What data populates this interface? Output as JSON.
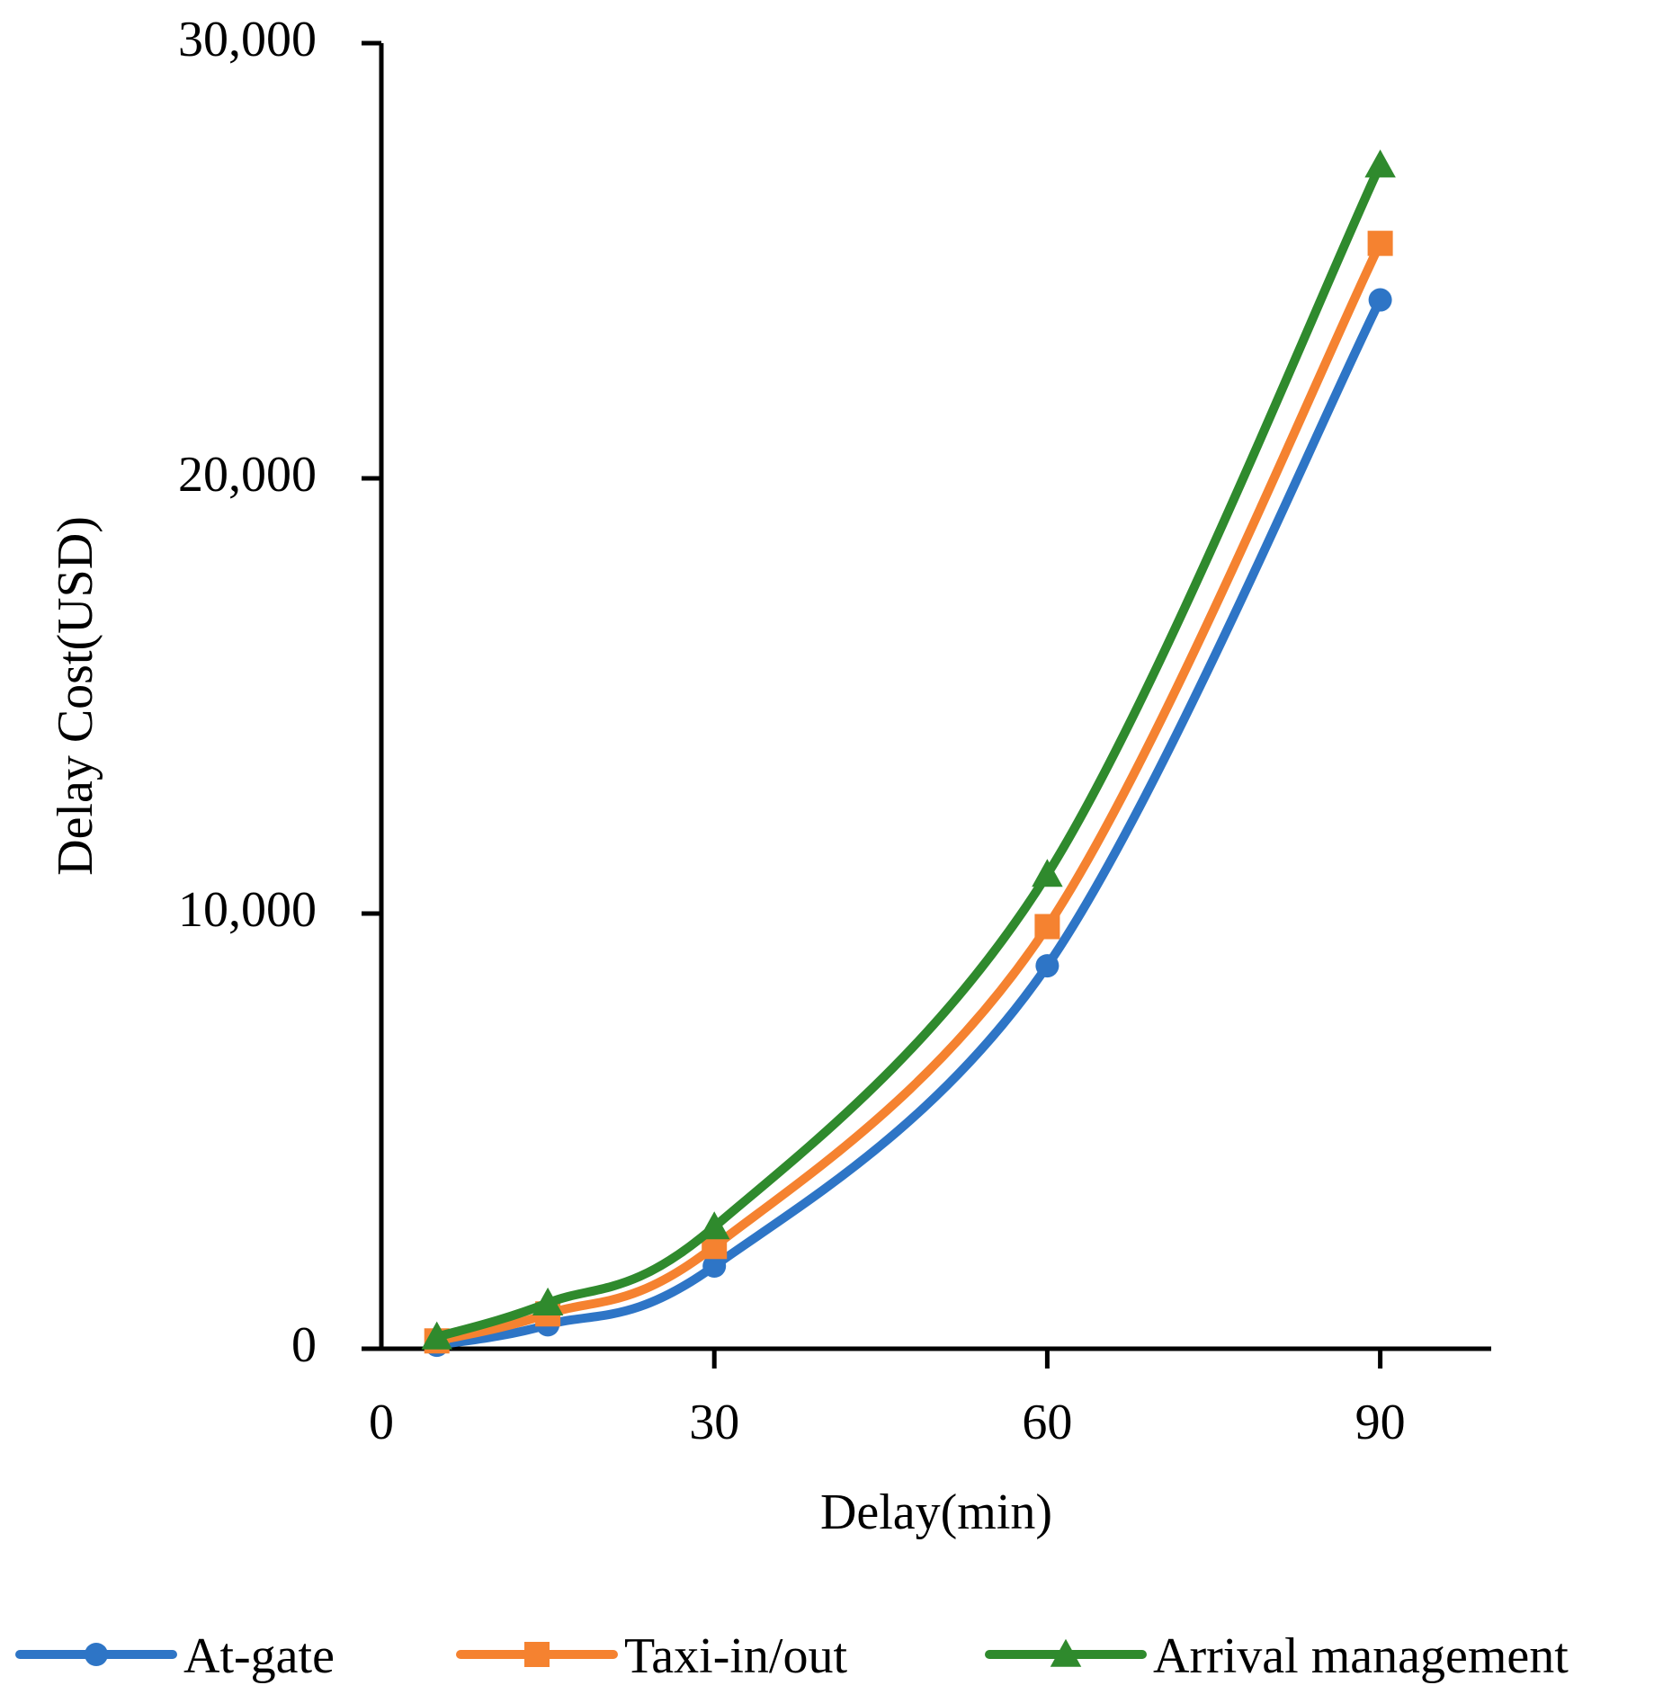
{
  "chart_data": {
    "type": "line",
    "title": "",
    "xlabel": "Delay(min)",
    "ylabel": "Delay Cost(USD)",
    "xlim": [
      0,
      100
    ],
    "ylim": [
      0,
      30000
    ],
    "xticks": [
      0,
      30,
      60,
      90
    ],
    "xtick_labels": [
      "0",
      "30",
      "60",
      "90"
    ],
    "yticks": [
      0,
      10000,
      20000,
      30000
    ],
    "ytick_labels": [
      "0",
      "10,000",
      "20,000",
      "30,000"
    ],
    "grid": false,
    "legend_position": "bottom",
    "x": [
      5,
      15,
      30,
      60,
      90
    ],
    "series": [
      {
        "name": "At-gate",
        "color": "#2E75C6",
        "marker": "circle",
        "values": [
          80,
          550,
          1900,
          8800,
          24100
        ]
      },
      {
        "name": "Taxi-in/out",
        "color": "#F58230",
        "marker": "square",
        "values": [
          180,
          800,
          2350,
          9700,
          25400
        ]
      },
      {
        "name": "Arrival management",
        "color": "#2F8A2D",
        "marker": "triangle",
        "values": [
          270,
          1050,
          2800,
          10900,
          27200
        ]
      }
    ]
  }
}
